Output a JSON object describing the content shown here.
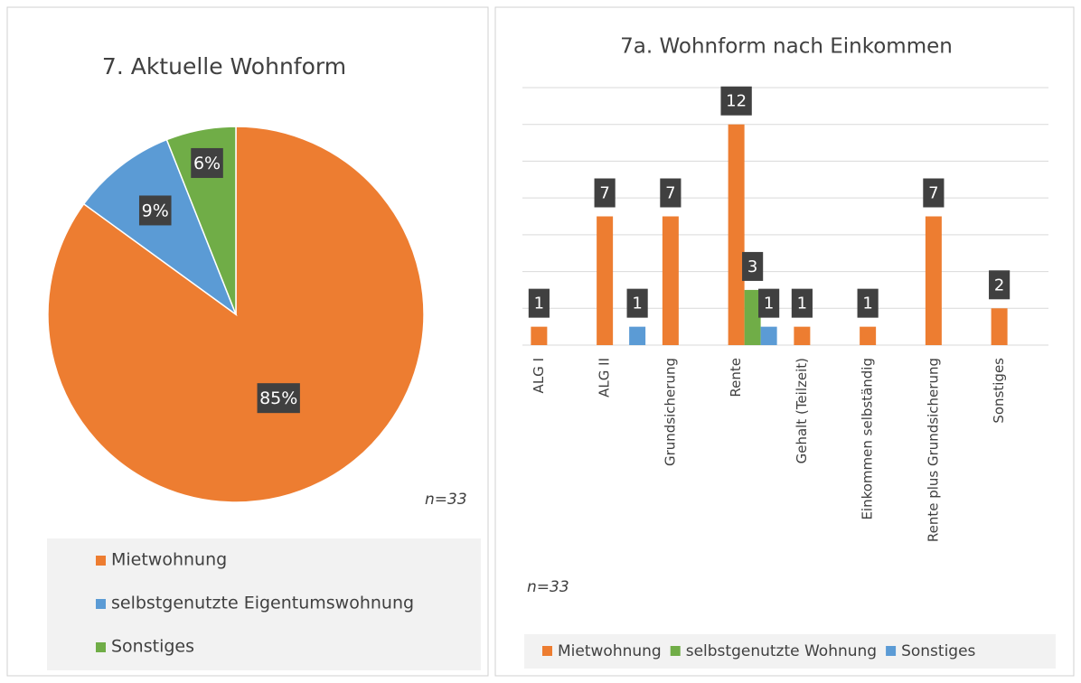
{
  "chart_data": [
    {
      "type": "pie",
      "title": "7. Aktuelle Wohnform",
      "categories": [
        "Mietwohnung",
        "selbstgenutzte Eigentumswohnung",
        "Sonstiges"
      ],
      "values": [
        85,
        9,
        6
      ],
      "value_labels": [
        "85%",
        "9%",
        "6%"
      ],
      "colors": [
        "#ed7d31",
        "#5b9bd5",
        "#70ad47"
      ],
      "annotation": "n=33",
      "legend": "bottom"
    },
    {
      "type": "bar",
      "title": "7a. Wohnform nach Einkommen",
      "categories": [
        "ALG I",
        "ALG II",
        "Grundsicherung",
        "Rente",
        "Gehalt (Teilzeit)",
        "Einkommen selbständig",
        "Rente plus Grundsicherung",
        "Sonstiges"
      ],
      "series": [
        {
          "name": "Mietwohnung",
          "color": "#ed7d31",
          "values": [
            1,
            7,
            7,
            12,
            1,
            1,
            7,
            2
          ]
        },
        {
          "name": "selbstgenutzte Wohnung",
          "color": "#70ad47",
          "values": [
            null,
            null,
            null,
            3,
            null,
            null,
            null,
            null
          ]
        },
        {
          "name": "Sonstiges",
          "color": "#5b9bd5",
          "values": [
            null,
            1,
            null,
            1,
            null,
            null,
            null,
            null
          ]
        }
      ],
      "ylim": [
        0,
        14
      ],
      "yticks": [
        0,
        2,
        4,
        6,
        8,
        10,
        12,
        14
      ],
      "grid": true,
      "annotation": "n=33",
      "legend": "bottom"
    }
  ]
}
